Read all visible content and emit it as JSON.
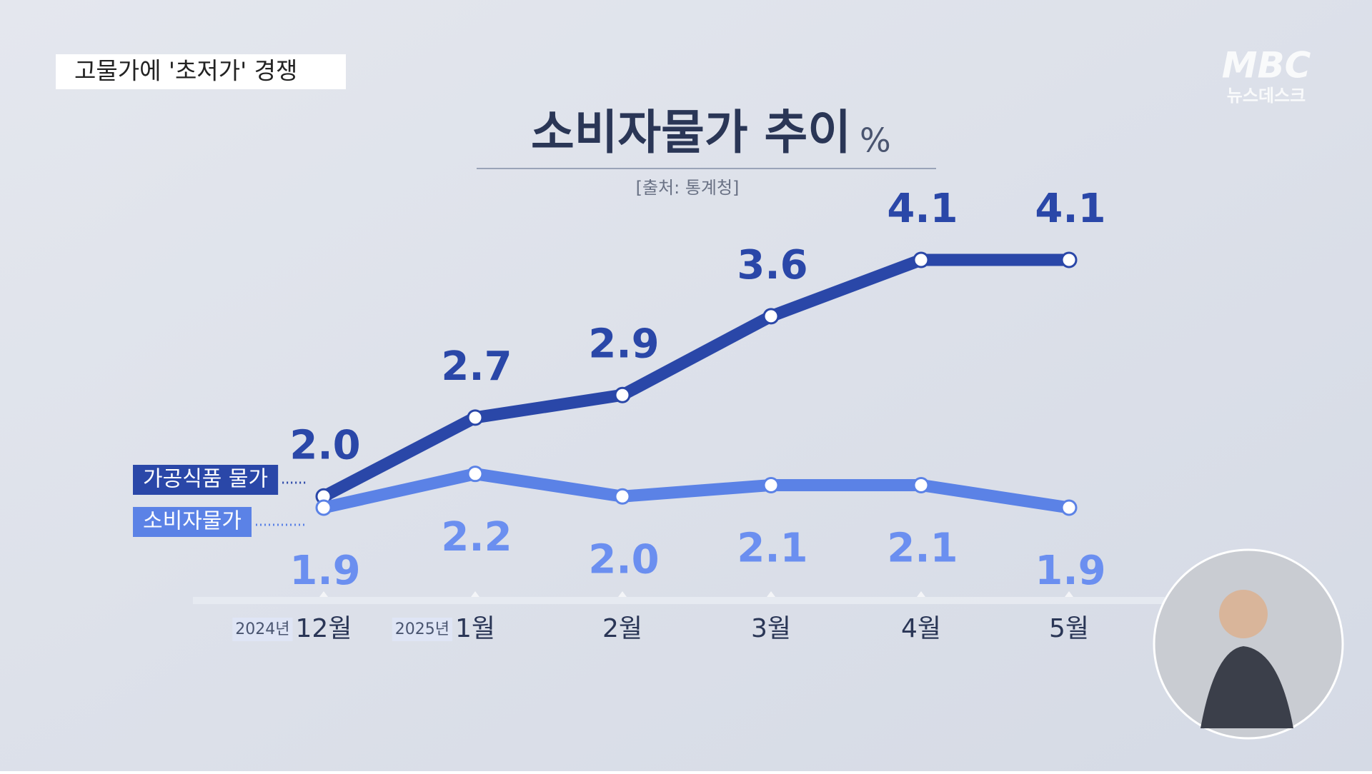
{
  "header": {
    "headline": "고물가에 '초저가' 경쟁",
    "logo": "MBC",
    "program": "뉴스데스크"
  },
  "chart_data": {
    "type": "line",
    "title": "소비자물가 추이",
    "unit": "%",
    "source": "[출처: 통계청]",
    "categories": [
      "12월",
      "1월",
      "2월",
      "3월",
      "4월",
      "5월"
    ],
    "year_labels": [
      "2024년",
      "2025년"
    ],
    "series": [
      {
        "name": "가공식품 물가",
        "color": "#2a47a8",
        "values": [
          2.0,
          2.7,
          2.9,
          3.6,
          4.1,
          4.1
        ],
        "value_labels": [
          "2.0",
          "2.7",
          "2.9",
          "3.6",
          "4.1",
          "4.1"
        ]
      },
      {
        "name": "소비자물가",
        "color": "#5b82e6",
        "values": [
          1.9,
          2.2,
          2.0,
          2.1,
          2.1,
          1.9
        ],
        "value_labels": [
          "1.9",
          "2.2",
          "2.0",
          "2.1",
          "2.1",
          "1.9"
        ]
      }
    ]
  }
}
